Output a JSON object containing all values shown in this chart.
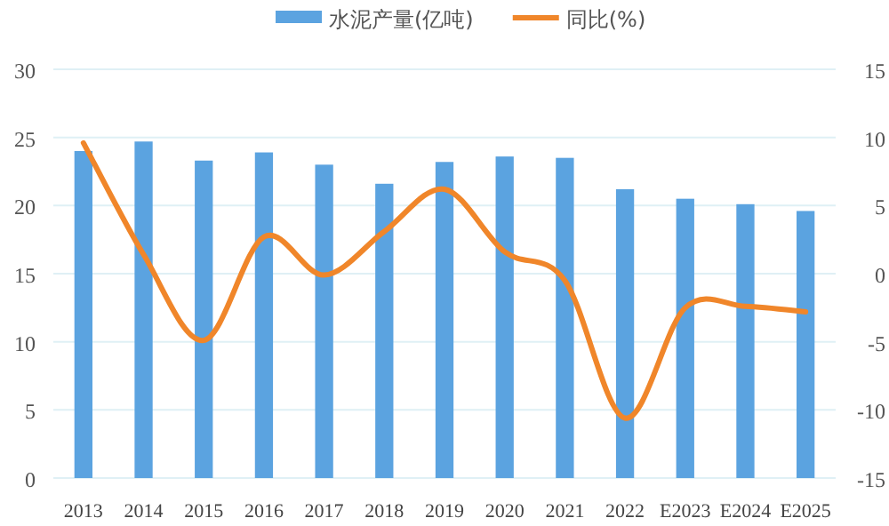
{
  "chart_data": {
    "type": "bar",
    "categories": [
      "2013",
      "2014",
      "2015",
      "2016",
      "2017",
      "2018",
      "2019",
      "2020",
      "2021",
      "2022",
      "E2023",
      "E2024",
      "E2025"
    ],
    "series": [
      {
        "name": "水泥产量(亿吨)",
        "color": "#5ba3e0",
        "values": [
          24.0,
          24.7,
          23.3,
          23.9,
          23.0,
          21.6,
          23.2,
          23.6,
          23.5,
          21.2,
          20.5,
          20.1,
          19.6
        ]
      },
      {
        "name": "同比(%)",
        "type": "line",
        "axis": "y2",
        "color": "#f0862a",
        "values": [
          9.6,
          1.4,
          -4.9,
          2.7,
          -0.1,
          3.1,
          6.2,
          1.6,
          -0.5,
          -10.6,
          -2.5,
          -2.4,
          -2.8
        ]
      }
    ],
    "ylim": [
      0,
      30
    ],
    "yticks": [
      0,
      5,
      10,
      15,
      20,
      25,
      30
    ],
    "y2lim": [
      -15,
      15
    ],
    "y2ticks": [
      -15,
      -10,
      -5,
      0,
      5,
      10,
      15
    ],
    "grid": "y",
    "legend": "top"
  }
}
